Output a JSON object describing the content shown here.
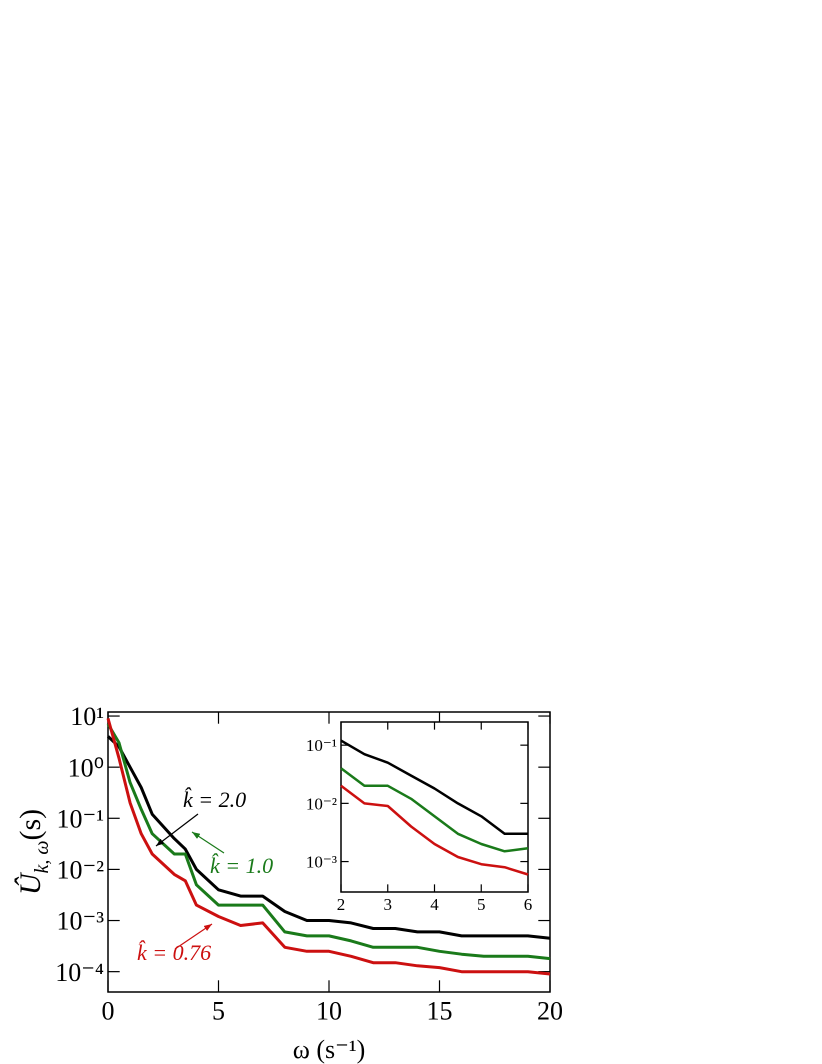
{
  "chart_data": [
    {
      "type": "line",
      "xlabel": "ω (s⁻¹)",
      "ylabel": {
        "symbol": "Û",
        "subscript": "k, ω",
        "unit": "(s)"
      },
      "log_y": true,
      "xlim": [
        0,
        20
      ],
      "xticks": [
        0,
        5,
        10,
        15,
        20
      ],
      "ylim": [
        4e-05,
        12
      ],
      "yticks": [
        {
          "value": 10,
          "label": "10¹"
        },
        {
          "value": 1,
          "label": "10⁰"
        },
        {
          "value": 0.1,
          "label": "10⁻¹"
        },
        {
          "value": 0.01,
          "label": "10⁻²"
        },
        {
          "value": 0.001,
          "label": "10⁻³"
        },
        {
          "value": 0.0001,
          "label": "10⁻⁴"
        }
      ],
      "x": [
        0,
        0.5,
        1,
        1.5,
        2,
        3,
        3.5,
        4,
        5,
        6,
        7,
        8,
        9,
        10,
        11,
        12,
        13,
        14,
        15,
        16,
        17,
        18,
        19,
        20
      ],
      "series": [
        {
          "name": "k̂ = 2.0",
          "color": "#000000",
          "values": [
            4,
            2.5,
            1,
            0.4,
            0.12,
            0.04,
            0.025,
            0.01,
            0.004,
            0.003,
            0.003,
            0.0015,
            0.001,
            0.001,
            0.0009,
            0.0007,
            0.0007,
            0.0006,
            0.0006,
            0.0005,
            0.0005,
            0.0005,
            0.0005,
            0.00045
          ]
        },
        {
          "name": "k̂ = 1.0",
          "color": "#1a7a1a",
          "values": [
            7,
            3,
            0.5,
            0.15,
            0.05,
            0.02,
            0.02,
            0.005,
            0.002,
            0.002,
            0.002,
            0.0006,
            0.0005,
            0.0005,
            0.0004,
            0.0003,
            0.0003,
            0.0003,
            0.00025,
            0.00022,
            0.0002,
            0.0002,
            0.0002,
            0.00018
          ]
        },
        {
          "name": "k̂ = 0.76",
          "color": "#cc1010",
          "values": [
            9,
            1.5,
            0.2,
            0.05,
            0.02,
            0.008,
            0.006,
            0.002,
            0.0012,
            0.0008,
            0.0009,
            0.0003,
            0.00025,
            0.00025,
            0.0002,
            0.00015,
            0.00015,
            0.00013,
            0.00012,
            0.0001,
            0.0001,
            0.0001,
            0.0001,
            9e-05
          ]
        }
      ]
    },
    {
      "type": "line",
      "log_y": true,
      "xlim": [
        2,
        6
      ],
      "xticks": [
        2,
        3,
        4,
        5,
        6
      ],
      "ylim": [
        0.0003,
        0.25
      ],
      "yticks": [
        {
          "value": 0.1,
          "label": "10⁻¹"
        },
        {
          "value": 0.01,
          "label": "10⁻²"
        },
        {
          "value": 0.001,
          "label": "10⁻³"
        }
      ],
      "x": [
        2,
        2.5,
        3,
        3.5,
        4,
        4.5,
        5,
        5.5,
        6
      ],
      "series": [
        {
          "color": "#000000",
          "values": [
            0.12,
            0.07,
            0.05,
            0.03,
            0.018,
            0.01,
            0.006,
            0.003,
            0.003
          ]
        },
        {
          "color": "#1a7a1a",
          "values": [
            0.04,
            0.02,
            0.02,
            0.012,
            0.006,
            0.003,
            0.002,
            0.0015,
            0.0017
          ]
        },
        {
          "color": "#cc1010",
          "values": [
            0.02,
            0.01,
            0.009,
            0.004,
            0.002,
            0.0012,
            0.0009,
            0.0008,
            0.0006
          ]
        }
      ]
    }
  ]
}
